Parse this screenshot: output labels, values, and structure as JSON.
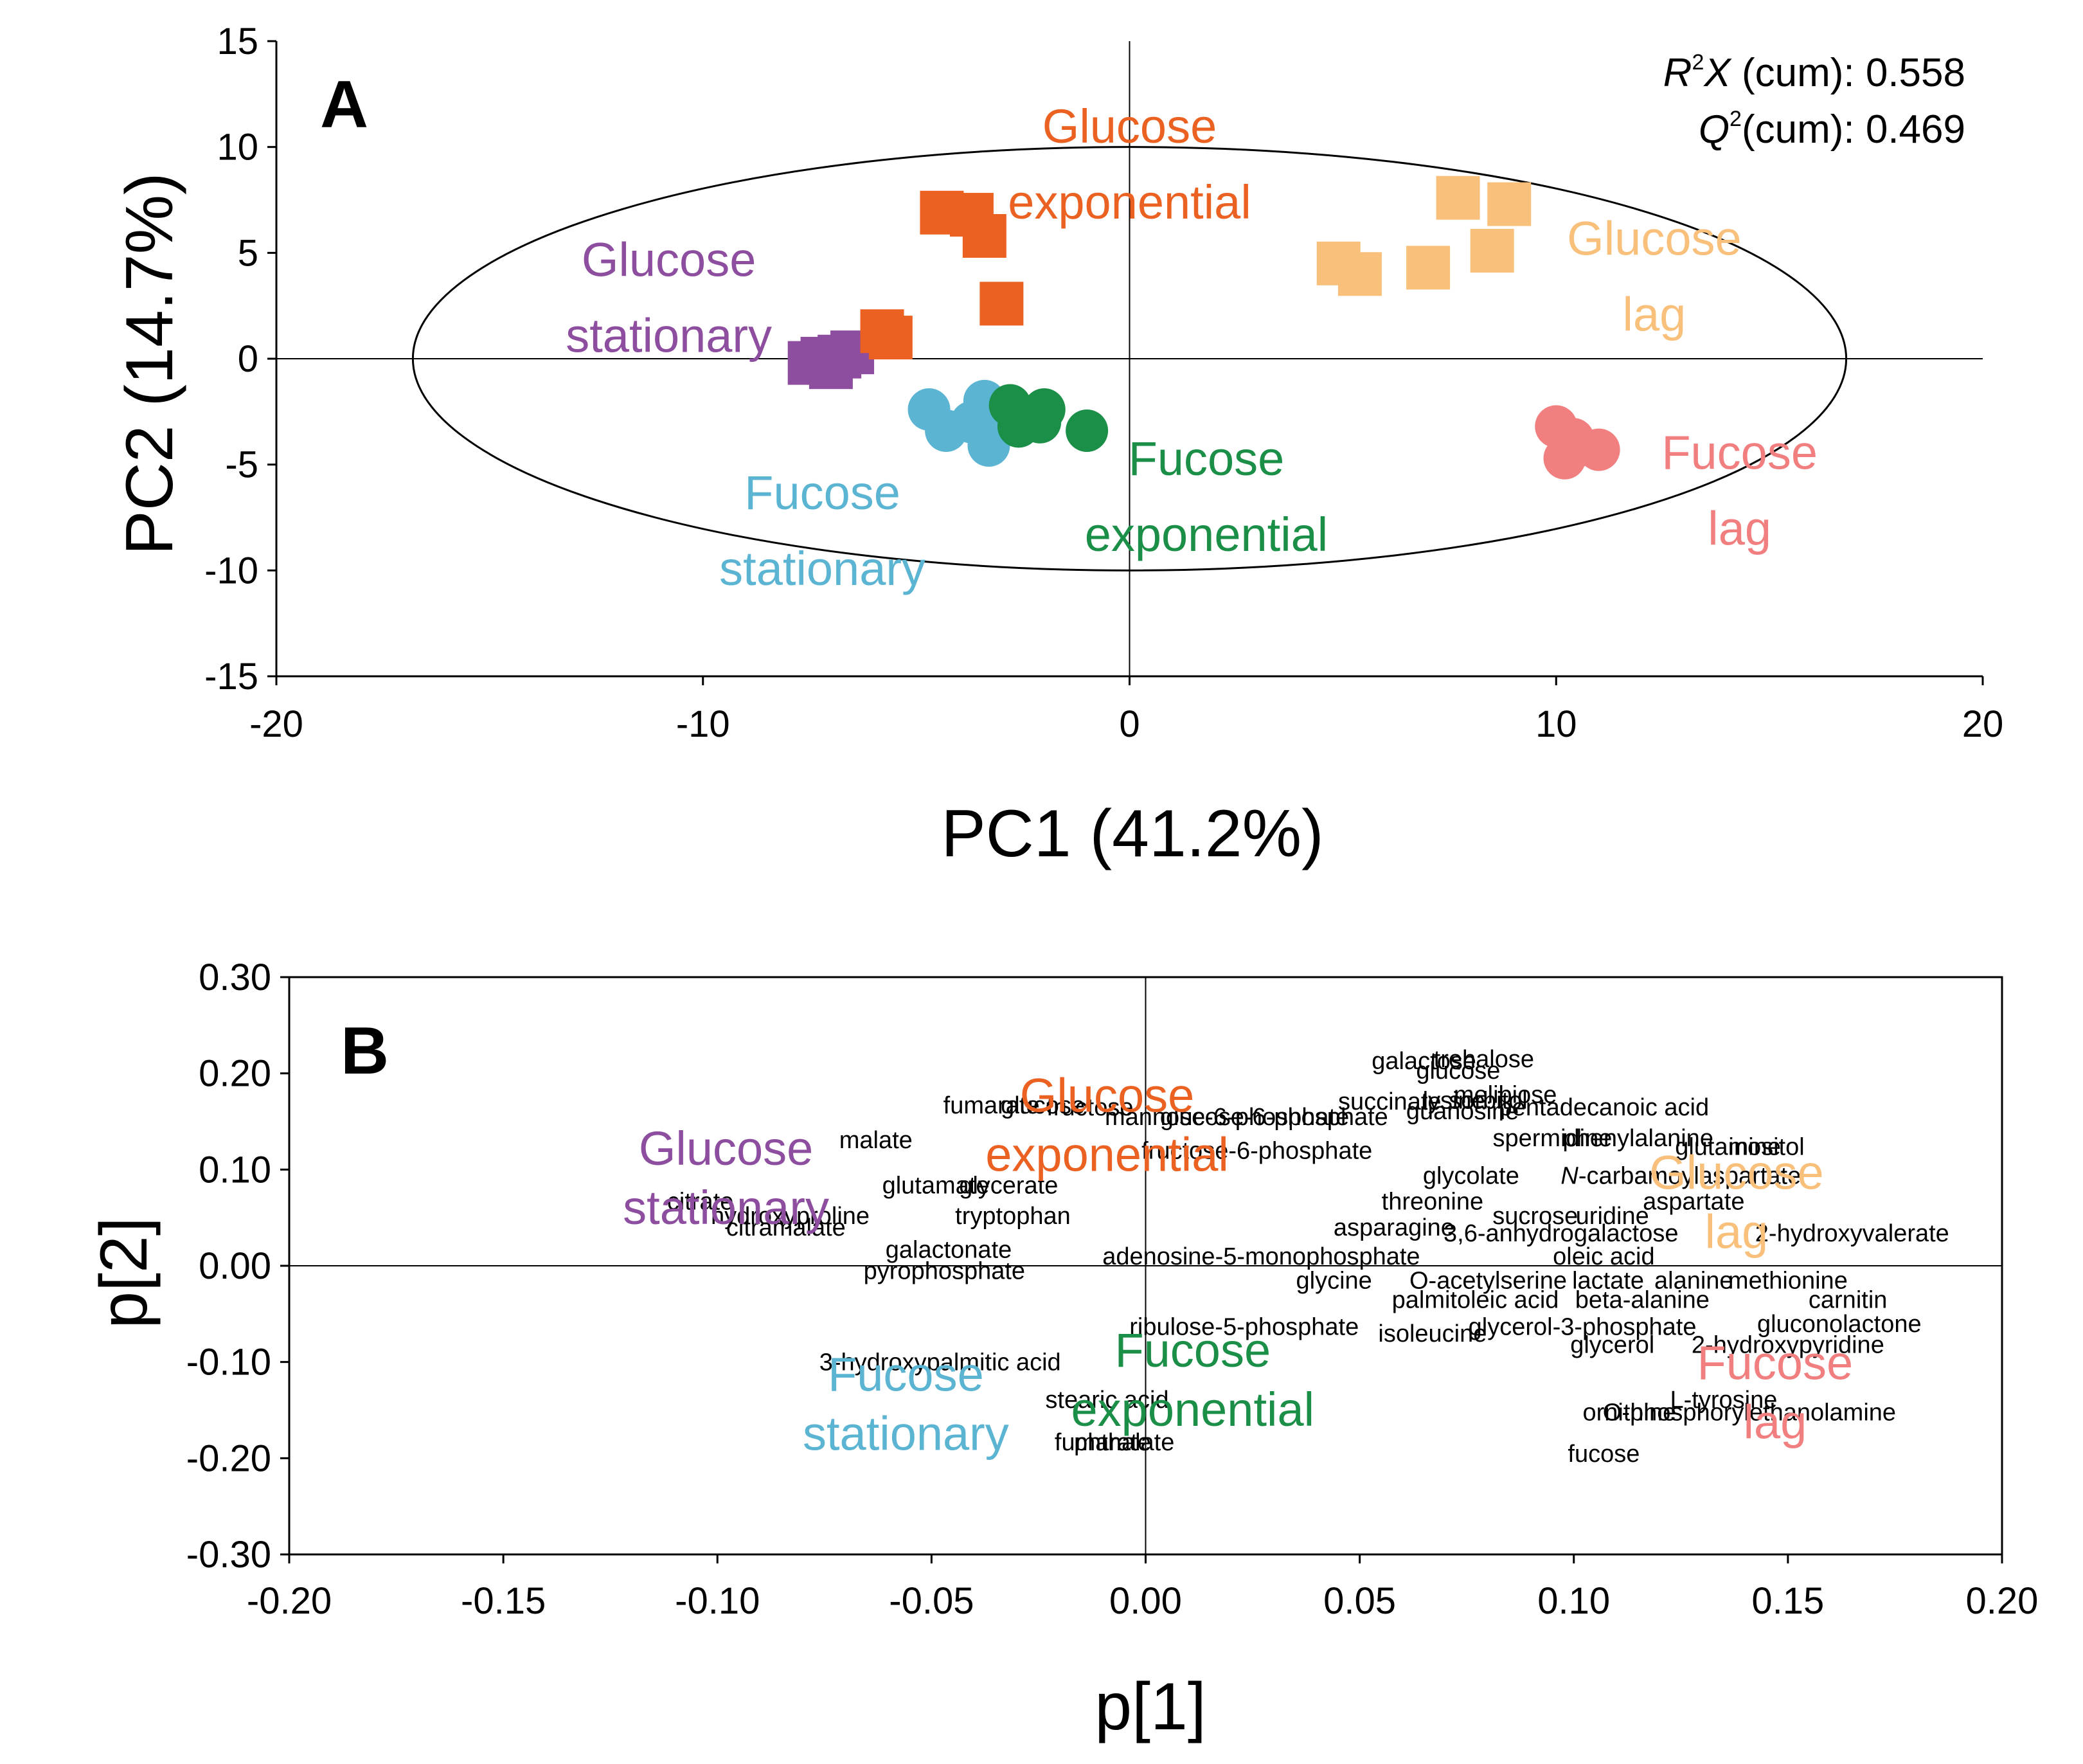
{
  "colors": {
    "glucose_stationary": "#8E4EA0",
    "glucose_exponential": "#EB6121",
    "glucose_lag": "#F8C07A",
    "fucose_stationary": "#5BB5D2",
    "fucose_exponential": "#1B8F47",
    "fucose_lag": "#F27F7F"
  },
  "chart_data": [
    {
      "panel": "A",
      "type": "scatter",
      "xlabel": "PC1 (41.2%)",
      "ylabel": "PC2 (14.7%)",
      "xlim": [
        -20,
        20
      ],
      "ylim": [
        -15,
        15
      ],
      "xticks": [
        -20,
        -10,
        0,
        10,
        20
      ],
      "yticks": [
        15,
        10,
        5,
        0,
        -5,
        -10,
        -15
      ],
      "grid": false,
      "stats": {
        "r2x_sym": "R",
        "r2x_sup": "2",
        "r2x_var": "X",
        "r2x_rest": " (cum): 0.558",
        "q2_sym": "Q",
        "q2_sup": "2",
        "q2_rest": "(cum): 0.469"
      },
      "ellipse": {
        "center": [
          0,
          0
        ],
        "rx": 16.8,
        "ry": 10.0
      },
      "series": [
        {
          "name": "Glucose stationary",
          "label_lines": [
            "Glucose",
            "stationary"
          ],
          "label_at": [
            -10.8,
            3.9
          ],
          "color_key": "glucose_stationary",
          "marker": "square",
          "points": [
            [
              -7.5,
              -0.2
            ],
            [
              -7.0,
              -0.4
            ],
            [
              -6.8,
              0.1
            ],
            [
              -6.5,
              0.3
            ],
            [
              -7.2,
              0.0
            ]
          ]
        },
        {
          "name": "Glucose exponential",
          "label_lines": [
            "Glucose",
            "exponential"
          ],
          "label_at": [
            0.0,
            10.2
          ],
          "color_key": "glucose_exponential",
          "marker": "square",
          "points": [
            [
              -4.4,
              6.9
            ],
            [
              -3.7,
              6.8
            ],
            [
              -3.4,
              5.8
            ],
            [
              -3.0,
              2.6
            ],
            [
              -5.8,
              1.3
            ],
            [
              -5.6,
              1.0
            ]
          ]
        },
        {
          "name": "Glucose lag",
          "label_lines": [
            "Glucose",
            "lag"
          ],
          "label_at": [
            12.3,
            4.9
          ],
          "color_key": "glucose_lag",
          "marker": "square",
          "points": [
            [
              4.9,
              4.5
            ],
            [
              5.4,
              4.0
            ],
            [
              7.0,
              4.3
            ],
            [
              7.7,
              7.6
            ],
            [
              8.5,
              5.1
            ],
            [
              8.9,
              7.3
            ]
          ]
        },
        {
          "name": "Fucose stationary",
          "label_lines": [
            "Fucose",
            "stationary"
          ],
          "label_at": [
            -7.2,
            -7.1
          ],
          "color_key": "fucose_stationary",
          "marker": "circle",
          "points": [
            [
              -4.7,
              -2.4
            ],
            [
              -4.3,
              -3.4
            ],
            [
              -3.7,
              -3.0
            ],
            [
              -3.3,
              -4.1
            ],
            [
              -3.4,
              -2.0
            ],
            [
              -3.2,
              -3.2
            ]
          ]
        },
        {
          "name": "Fucose exponential",
          "label_lines": [
            "Fucose",
            "exponential"
          ],
          "label_at": [
            1.8,
            -5.5
          ],
          "color_key": "fucose_exponential",
          "marker": "circle",
          "points": [
            [
              -2.8,
              -2.2
            ],
            [
              -2.6,
              -3.2
            ],
            [
              -2.1,
              -3.0
            ],
            [
              -2.0,
              -2.4
            ],
            [
              -1.0,
              -3.4
            ]
          ]
        },
        {
          "name": "Fucose lag",
          "label_lines": [
            "Fucose",
            "lag"
          ],
          "label_at": [
            14.3,
            -5.2
          ],
          "color_key": "fucose_lag",
          "marker": "circle",
          "points": [
            [
              10.0,
              -3.2
            ],
            [
              10.4,
              -3.8
            ],
            [
              10.2,
              -4.7
            ],
            [
              11.0,
              -4.3
            ],
            [
              10.3,
              -4.4
            ]
          ]
        }
      ]
    },
    {
      "panel": "B",
      "type": "scatter",
      "xlabel": "p[1]",
      "ylabel": "p[2]",
      "xlim": [
        -0.2,
        0.2
      ],
      "ylim": [
        -0.3,
        0.3
      ],
      "xticks": [
        "-0.20",
        "-0.15",
        "-0.10",
        "-0.05",
        "0.00",
        "0.05",
        "0.10",
        "0.15",
        "0.20"
      ],
      "yticks": [
        "0.30",
        "0.20",
        "0.10",
        "0.00",
        "-0.10",
        "-0.20",
        "-0.30"
      ],
      "grid": false,
      "group_labels": [
        {
          "lines": [
            "Glucose",
            "stationary"
          ],
          "at": [
            -0.098,
            0.105
          ],
          "color_key": "glucose_stationary"
        },
        {
          "lines": [
            "Glucose",
            "exponential"
          ],
          "at": [
            -0.009,
            0.16
          ],
          "color_key": "glucose_exponential"
        },
        {
          "lines": [
            "Glucose",
            "lag"
          ],
          "at": [
            0.138,
            0.08
          ],
          "color_key": "glucose_lag"
        },
        {
          "lines": [
            "Fucose",
            "stationary"
          ],
          "at": [
            -0.056,
            -0.13
          ],
          "color_key": "fucose_stationary"
        },
        {
          "lines": [
            "Fucose",
            "exponential"
          ],
          "at": [
            0.011,
            -0.105
          ],
          "color_key": "fucose_exponential"
        },
        {
          "lines": [
            "Fucose",
            "lag"
          ],
          "at": [
            0.147,
            -0.118
          ],
          "color_key": "fucose_lag"
        }
      ],
      "loadings": [
        {
          "label": "galactose",
          "x": 0.065,
          "y": 0.213
        },
        {
          "label": "trehalose",
          "x": 0.079,
          "y": 0.215
        },
        {
          "label": "glucose",
          "x": 0.073,
          "y": 0.203
        },
        {
          "label": "melibiose",
          "x": 0.084,
          "y": 0.178
        },
        {
          "label": "succinate",
          "x": 0.057,
          "y": 0.171
        },
        {
          "label": "lysine",
          "x": 0.072,
          "y": 0.172
        },
        {
          "label": "sorbitol",
          "x": 0.08,
          "y": 0.172
        },
        {
          "label": "guanosine",
          "x": 0.074,
          "y": 0.161
        },
        {
          "label": "pentadecanoic acid",
          "x": 0.107,
          "y": 0.165
        },
        {
          "label": "fumarate",
          "x": -0.036,
          "y": 0.167
        },
        {
          "label": "glucose",
          "x": -0.024,
          "y": 0.167
        },
        {
          "label": "fructose",
          "x": -0.013,
          "y": 0.165
        },
        {
          "label": "mannose-6-phosphate",
          "x": 0.019,
          "y": 0.155
        },
        {
          "label": "glucose-6-phosphate",
          "x": 0.03,
          "y": 0.155
        },
        {
          "label": "fructose-6-phosphate",
          "x": 0.026,
          "y": 0.12
        },
        {
          "label": "malate",
          "x": -0.063,
          "y": 0.131
        },
        {
          "label": "spermidine",
          "x": 0.095,
          "y": 0.133
        },
        {
          "label": "phenylalanine",
          "x": 0.115,
          "y": 0.133
        },
        {
          "label": "glutamine",
          "x": 0.136,
          "y": 0.124
        },
        {
          "label": "inositol",
          "x": 0.145,
          "y": 0.124
        },
        {
          "label": "glutamate",
          "x": -0.049,
          "y": 0.084
        },
        {
          "label": "glycerate",
          "x": -0.032,
          "y": 0.084
        },
        {
          "label": "glycolate",
          "x": 0.076,
          "y": 0.094
        },
        {
          "label": "N-carbamoylaspartate",
          "x": 0.125,
          "y": 0.094
        },
        {
          "label": "threonine",
          "x": 0.067,
          "y": 0.067
        },
        {
          "label": "aspartate",
          "x": 0.128,
          "y": 0.067
        },
        {
          "label": "citrate",
          "x": -0.104,
          "y": 0.067
        },
        {
          "label": "hydroxyproline",
          "x": -0.083,
          "y": 0.052
        },
        {
          "label": "citramalate",
          "x": -0.084,
          "y": 0.04
        },
        {
          "label": "tryptophan",
          "x": -0.031,
          "y": 0.052
        },
        {
          "label": "sucrose",
          "x": 0.091,
          "y": 0.052
        },
        {
          "label": "uridine",
          "x": 0.109,
          "y": 0.052
        },
        {
          "label": "asparagine",
          "x": 0.058,
          "y": 0.04
        },
        {
          "label": "3,6-anhydrogalactose",
          "x": 0.097,
          "y": 0.034
        },
        {
          "label": "2-hydroxyvalerate",
          "x": 0.165,
          "y": 0.034
        },
        {
          "label": "galactonate",
          "x": -0.046,
          "y": 0.017
        },
        {
          "label": "adenosine-5-monophosphate",
          "x": 0.027,
          "y": 0.01
        },
        {
          "label": "oleic acid",
          "x": 0.107,
          "y": 0.01
        },
        {
          "label": "pyrophosphate",
          "x": -0.047,
          "y": -0.005
        },
        {
          "label": "glycine",
          "x": 0.044,
          "y": -0.015
        },
        {
          "label": "O-acetylserine",
          "x": 0.08,
          "y": -0.015
        },
        {
          "label": "lactate",
          "x": 0.108,
          "y": -0.015
        },
        {
          "label": "alanine",
          "x": 0.128,
          "y": -0.015
        },
        {
          "label": "methionine",
          "x": 0.15,
          "y": -0.015
        },
        {
          "label": "palmitoleic acid",
          "x": 0.077,
          "y": -0.035
        },
        {
          "label": "beta-alanine",
          "x": 0.116,
          "y": -0.035
        },
        {
          "label": "carnitin",
          "x": 0.164,
          "y": -0.035
        },
        {
          "label": "ribulose-5-phosphate",
          "x": 0.023,
          "y": -0.063
        },
        {
          "label": "isoleucine",
          "x": 0.067,
          "y": -0.07
        },
        {
          "label": "glycerol-3-phosphate",
          "x": 0.102,
          "y": -0.063
        },
        {
          "label": "gluconolactone",
          "x": 0.162,
          "y": -0.06
        },
        {
          "label": "glycerol",
          "x": 0.109,
          "y": -0.082
        },
        {
          "label": "2-hydroxypyridine",
          "x": 0.15,
          "y": -0.082
        },
        {
          "label": "3-hydroxypalmitic acid",
          "x": -0.048,
          "y": -0.1
        },
        {
          "label": "stearic acid",
          "x": -0.009,
          "y": -0.139
        },
        {
          "label": "L-tyrosine",
          "x": 0.135,
          "y": -0.139
        },
        {
          "label": "ornithine",
          "x": 0.113,
          "y": -0.152
        },
        {
          "label": "O-phosphorylethanolamine",
          "x": 0.141,
          "y": -0.152
        },
        {
          "label": "fumarate",
          "x": -0.01,
          "y": -0.183
        },
        {
          "label": "phthalate",
          "x": -0.005,
          "y": -0.183
        },
        {
          "label": "fucose",
          "x": 0.107,
          "y": -0.195
        }
      ]
    }
  ]
}
